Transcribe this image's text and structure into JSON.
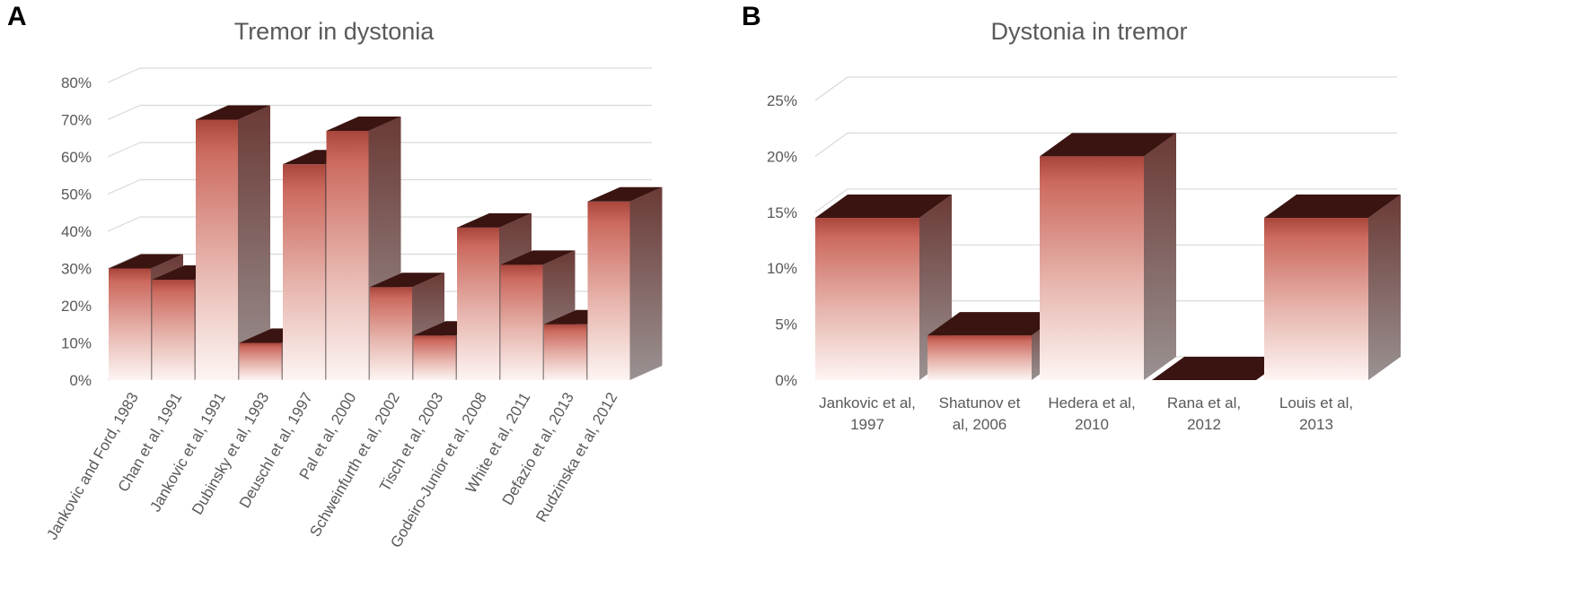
{
  "chart_data": [
    {
      "panel": "A",
      "type": "bar",
      "title": "Tremor in dystonia",
      "categories": [
        "Jankovic and Ford, 1983",
        "Chan et al, 1991",
        "Jankovic et al, 1991",
        "Dubinsky et al, 1993",
        "Deuschl et al, 1997",
        "Pal et al, 2000",
        "Schweinfurth et al, 2002",
        "Tisch et al, 2003",
        "Godeiro-Junior et al, 2008",
        "White et al, 2011",
        "Defazio et al, 2013",
        "Rudzinska et al, 2012"
      ],
      "values": [
        30,
        27,
        70,
        10,
        58,
        67,
        25,
        12,
        41,
        31,
        15,
        48
      ],
      "value_unit": "%",
      "ylim": [
        0,
        80
      ],
      "yticks": [
        "0%",
        "10%",
        "20%",
        "30%",
        "40%",
        "50%",
        "60%",
        "70%",
        "80%"
      ],
      "grid": true,
      "style": "3d-column",
      "colors": {
        "top": "#3a1410",
        "upper": "#c8645a",
        "base": "#fdf5f3",
        "side": "#7a5552",
        "grid": "#d9d9d9",
        "text": "#595959"
      }
    },
    {
      "panel": "B",
      "type": "bar",
      "title": "Dystonia in tremor",
      "categories": [
        [
          "Jankovic et al,",
          "1997"
        ],
        [
          "Shatunov et",
          "al, 2006"
        ],
        [
          "Hedera et al,",
          "2010"
        ],
        [
          "Rana et al,",
          "2012"
        ],
        [
          "Louis et al,",
          "2013"
        ]
      ],
      "values": [
        14.5,
        4,
        20,
        0,
        14.5
      ],
      "value_unit": "%",
      "ylim": [
        0,
        25
      ],
      "yticks": [
        "0%",
        "5%",
        "10%",
        "15%",
        "20%",
        "25%"
      ],
      "grid": true,
      "style": "3d-column",
      "colors": {
        "top": "#3a1410",
        "upper": "#c8645a",
        "base": "#fdf5f3",
        "side": "#7a5552",
        "grid": "#d9d9d9",
        "text": "#595959"
      }
    }
  ]
}
